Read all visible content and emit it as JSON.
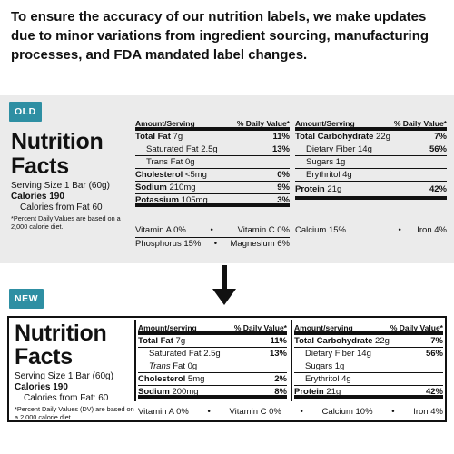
{
  "intro": "To ensure the accuracy of our nutrition labels, we make updates due to minor variations from ingredient sourcing, manufacturing processes, and FDA mandated label changes.",
  "colors": {
    "badge": "#2e8fa3",
    "old_panel_bg": "#ebebeb"
  },
  "old": {
    "badge": "OLD",
    "title_line1": "Nutrition",
    "title_line2": "Facts",
    "serving": "Serving Size 1 Bar (60g)",
    "calories": "Calories 190",
    "calories_fat": "Calories from Fat 60",
    "footnote": "*Percent Daily Values are based on a 2,000 calorie diet.",
    "left": {
      "hdr_left": "Amount/Serving",
      "hdr_right": "% Daily Value*",
      "rows": [
        {
          "name": "Total Fat",
          "amt": "7g",
          "pct": "11%"
        },
        {
          "name": "Saturated Fat",
          "amt": "2.5g",
          "pct": "13%"
        },
        {
          "name": "Trans Fat",
          "amt": "0g",
          "pct": ""
        },
        {
          "name": "Cholesterol",
          "amt": "<5mg",
          "pct": "0%"
        },
        {
          "name": "Sodium",
          "amt": "210mg",
          "pct": "9%"
        },
        {
          "name": "Potassium",
          "amt": "105mg",
          "pct": "3%"
        }
      ]
    },
    "right": {
      "hdr_left": "Amount/Serving",
      "hdr_right": "% Daily Value*",
      "rows": [
        {
          "name": "Total Carbohydrate",
          "amt": "22g",
          "pct": "7%"
        },
        {
          "name": "Dietary Fiber",
          "amt": "14g",
          "pct": "56%"
        },
        {
          "name": "Sugars",
          "amt": "1g",
          "pct": ""
        },
        {
          "name": "Erythritol",
          "amt": "4g",
          "pct": ""
        },
        {
          "name": "Protein",
          "amt": "21g",
          "pct": "42%"
        }
      ]
    },
    "vit_a": "Vitamin A 0%",
    "vit_c": "Vitamin C 0%",
    "phosphorus": "Phosphorus 15%",
    "magnesium": "Magnesium 6%",
    "calcium": "Calcium 15%",
    "iron": "Iron 4%",
    "bullet": "•"
  },
  "new": {
    "badge": "NEW",
    "title_line1": "Nutrition",
    "title_line2": "Facts",
    "serving": "Serving Size 1 Bar (60g)",
    "calories": "Calories 190",
    "calories_fat": "Calories from Fat: 60",
    "footnote": "*Percent Daily Values (DV) are based on a 2,000 calorie diet.",
    "left": {
      "hdr_left": "Amount/serving",
      "hdr_right": "% Daily Value*",
      "rows": [
        {
          "name": "Total Fat",
          "amt": "7g",
          "pct": "11%"
        },
        {
          "name": "Saturated Fat",
          "amt": "2.5g",
          "pct": "13%"
        },
        {
          "name": "Trans",
          "amt": "Fat 0g",
          "pct": ""
        },
        {
          "name": "Cholesterol",
          "amt": "5mg",
          "pct": "2%"
        },
        {
          "name": "Sodium",
          "amt": "200mg",
          "pct": "8%"
        }
      ]
    },
    "right": {
      "hdr_left": "Amount/serving",
      "hdr_right": "% Daily Value*",
      "rows": [
        {
          "name": "Total Carbohydrate",
          "amt": "22g",
          "pct": "7%"
        },
        {
          "name": "Dietary Fiber",
          "amt": "14g",
          "pct": "56%"
        },
        {
          "name": "Sugars",
          "amt": "1g",
          "pct": ""
        },
        {
          "name": "Erythritol",
          "amt": "4g",
          "pct": ""
        },
        {
          "name": "Protein",
          "amt": "21g",
          "pct": "42%"
        }
      ]
    },
    "vit_a": "Vitamin A 0%",
    "vit_c": "Vitamin C 0%",
    "calcium": "Calcium 10%",
    "iron": "Iron 4%",
    "bullet": "•"
  }
}
